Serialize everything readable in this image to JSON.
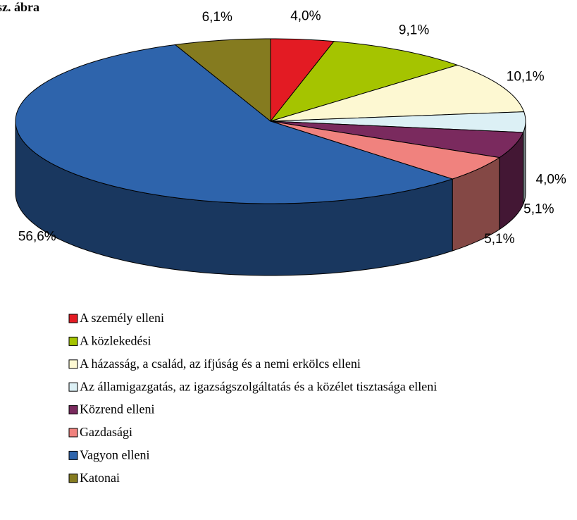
{
  "chart_data": {
    "type": "pie3d",
    "title": "sz. ábra",
    "categories": [
      "A személy elleni",
      "A közlekedési",
      "A házasság, a család, az ifjúság és a nemi erkölcs elleni",
      "Az államigazgatás, az igazságszolgáltatás és a közélet tisztasága elleni",
      "Közrend elleni",
      "Gazdasági",
      "Vagyon elleni",
      "Katonai"
    ],
    "values": [
      4.0,
      9.1,
      10.1,
      4.0,
      5.1,
      5.1,
      56.6,
      6.1
    ],
    "value_labels": [
      "4,0%",
      "9,1%",
      "10,1%",
      "4,0%",
      "5,1%",
      "5,1%",
      "56,6%",
      "6,1%"
    ],
    "colors": [
      "#e31b23",
      "#a5c400",
      "#fdf8d2",
      "#dcf0f5",
      "#7a2a5e",
      "#f0827e",
      "#2e64ac",
      "#857b1f"
    ]
  }
}
